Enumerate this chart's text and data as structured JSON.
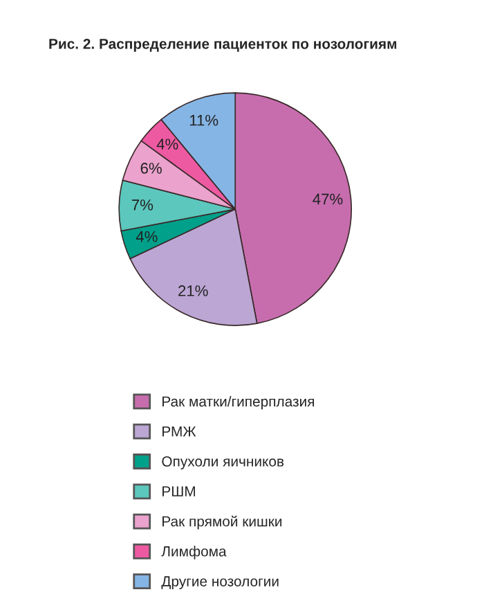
{
  "chart_data": {
    "type": "pie",
    "title": "Рис. 2. Распределение пациенток по нозологиям",
    "categories": [
      "Рак матки/гиперплазия",
      "РМЖ",
      "Опухоли яичников",
      "РШМ",
      "Рак прямой кишки",
      "Лимфома",
      "Другие нозологии"
    ],
    "values": [
      47,
      21,
      4,
      7,
      6,
      4,
      11
    ],
    "colors": [
      "#c76dae",
      "#bca6d4",
      "#00a08a",
      "#5cc7bd",
      "#eba2cd",
      "#ee5aa2",
      "#85b5e5"
    ],
    "value_labels": [
      "47%",
      "21%",
      "4%",
      "7%",
      "6%",
      "4%",
      "11%"
    ],
    "legend": "bottom"
  }
}
